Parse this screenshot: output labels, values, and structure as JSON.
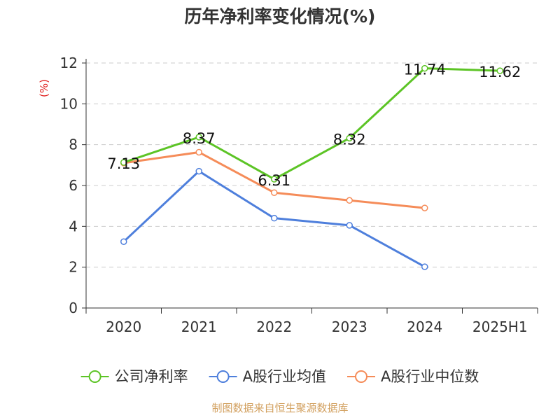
{
  "chart_data": {
    "type": "line",
    "title": "历年净利率变化情况(%)",
    "y_unit_label": "(%)",
    "categories": [
      "2020",
      "2021",
      "2022",
      "2023",
      "2024",
      "2025H1"
    ],
    "ylim": [
      0,
      12
    ],
    "y_ticks": [
      0,
      2,
      4,
      6,
      8,
      10,
      12
    ],
    "grid": true,
    "legend_position": "bottom",
    "series": [
      {
        "name": "公司净利率",
        "color": "#5cc425",
        "values": [
          7.13,
          8.37,
          6.31,
          8.32,
          11.74,
          11.62
        ],
        "data_labels": [
          "7.13",
          "8.37",
          "6.31",
          "8.32",
          "11.74",
          "11.62"
        ]
      },
      {
        "name": "A股行业均值",
        "color": "#4e7fdc",
        "values": [
          3.25,
          6.7,
          4.4,
          4.05,
          2.02,
          null
        ]
      },
      {
        "name": "A股行业中位数",
        "color": "#f58c59",
        "values": [
          7.1,
          7.63,
          5.65,
          5.27,
          4.9,
          null
        ]
      }
    ],
    "source": "制图数据来自恒生聚源数据库"
  }
}
